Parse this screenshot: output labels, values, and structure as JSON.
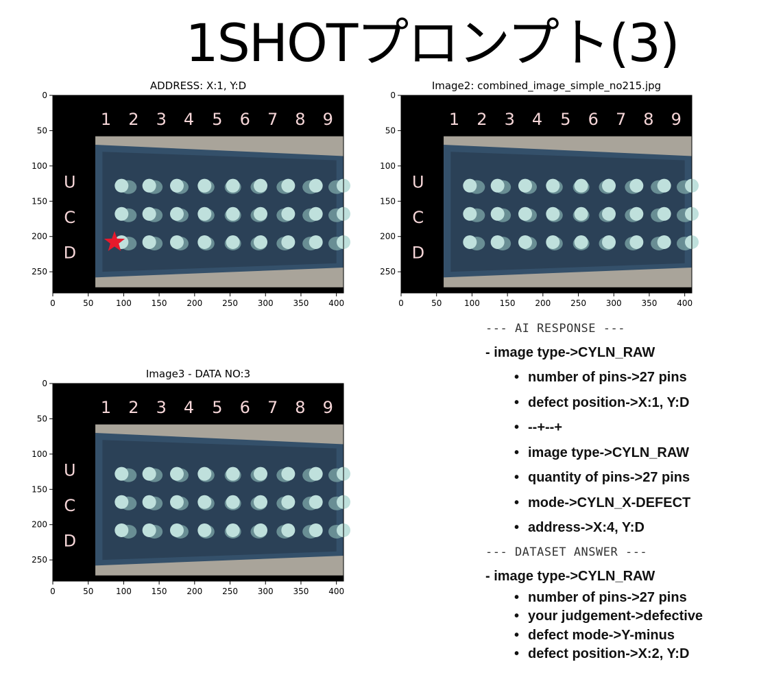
{
  "page": {
    "title": "1SHOTプロンプト(3)"
  },
  "plots": [
    {
      "title": "ADDRESS: X:1, Y:D",
      "x_ticks": [
        "0",
        "50",
        "100",
        "150",
        "200",
        "250",
        "300",
        "350",
        "400"
      ],
      "y_ticks": [
        "0",
        "50",
        "100",
        "150",
        "200",
        "250"
      ],
      "column_labels": [
        "1",
        "2",
        "3",
        "4",
        "5",
        "6",
        "7",
        "8",
        "9"
      ],
      "row_labels": [
        "U",
        "C",
        "D"
      ],
      "marker": {
        "type": "star",
        "color": "#e8192c",
        "column": 1,
        "row": "D"
      },
      "highlight_cell": null
    },
    {
      "title": "Image2: combined_image_simple_no215.jpg",
      "x_ticks": [
        "0",
        "50",
        "100",
        "150",
        "200",
        "250",
        "300",
        "350",
        "400"
      ],
      "y_ticks": [
        "0",
        "50",
        "100",
        "150",
        "200",
        "250"
      ],
      "column_labels": [
        "1",
        "2",
        "3",
        "4",
        "5",
        "6",
        "7",
        "8",
        "9"
      ],
      "row_labels": [
        "U",
        "C",
        "D"
      ],
      "marker": null,
      "highlight_cell": null
    },
    {
      "title": "Image3 - DATA NO:3",
      "x_ticks": [
        "0",
        "50",
        "100",
        "150",
        "200",
        "250",
        "300",
        "350",
        "400"
      ],
      "y_ticks": [
        "0",
        "50",
        "100",
        "150",
        "200",
        "250"
      ],
      "column_labels": [
        "1",
        "2",
        "3",
        "4",
        "5",
        "6",
        "7",
        "8",
        "9"
      ],
      "row_labels": [
        "U",
        "C",
        "D"
      ],
      "marker": null,
      "highlight_cell": null
    }
  ],
  "ai_response": {
    "header": "--- AI RESPONSE ---",
    "top_item": "- image type->CYLN_RAW",
    "items": [
      "number of pins->27 pins",
      "defect position->X:1, Y:D",
      "--+--+",
      "image type->CYLN_RAW",
      "quantity of pins->27 pins",
      "mode->CYLN_X-DEFECT",
      "address->X:4, Y:D"
    ]
  },
  "dataset_answer": {
    "header": "--- DATASET ANSWER ---",
    "top_item": "- image type->CYLN_RAW",
    "items": [
      "number of pins->27 pins",
      "your judgement->defective",
      "defect mode->Y-minus",
      "defect position->X:2, Y:D"
    ]
  },
  "colors": {
    "label_pink": "#f6d6d8",
    "panel_black": "#000000",
    "tray_blue": "#34506a",
    "pin_color": "#bfe0dc",
    "star_red": "#e8192c"
  }
}
